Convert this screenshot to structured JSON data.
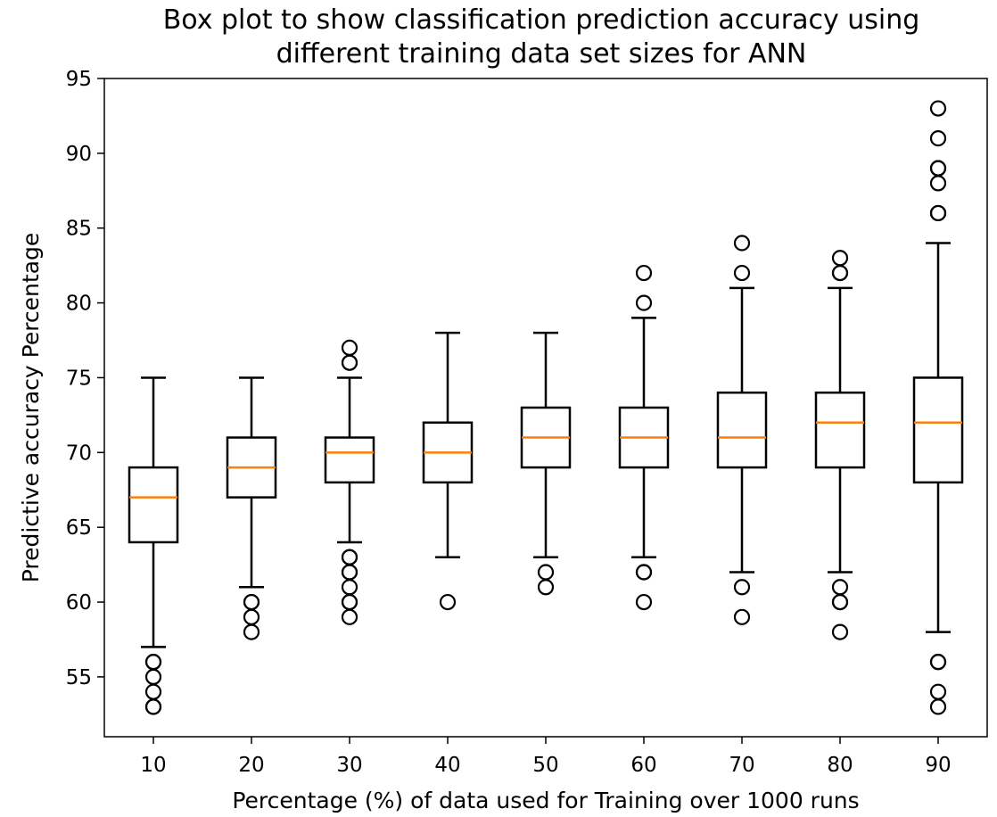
{
  "chart_data": {
    "type": "box",
    "title": "Box plot to show classification prediction accuracy using different training data set sizes for ANN",
    "title_lines": [
      "Box plot to show classification prediction accuracy using",
      "different training data set sizes for ANN"
    ],
    "xlabel": "Percentage (%) of data used for Training over 1000 runs",
    "ylabel": "Predictive accuracy Percentage",
    "ylim": [
      51,
      95
    ],
    "yticks": [
      55,
      60,
      65,
      70,
      75,
      80,
      85,
      90,
      95
    ],
    "categories": [
      "10",
      "20",
      "30",
      "40",
      "50",
      "60",
      "70",
      "80",
      "90"
    ],
    "boxes": [
      {
        "category": "10",
        "whisker_low": 57,
        "q1": 64,
        "median": 67,
        "q3": 69,
        "whisker_high": 75,
        "outliers": [
          56,
          56,
          55,
          54,
          53,
          53
        ]
      },
      {
        "category": "20",
        "whisker_low": 61,
        "q1": 67,
        "median": 69,
        "q3": 71,
        "whisker_high": 75,
        "outliers": [
          60,
          60,
          59,
          58
        ]
      },
      {
        "category": "30",
        "whisker_low": 64,
        "q1": 68,
        "median": 70,
        "q3": 71,
        "whisker_high": 75,
        "outliers": [
          77,
          76,
          76,
          63,
          63,
          62,
          62,
          61,
          60,
          60,
          59
        ]
      },
      {
        "category": "40",
        "whisker_low": 63,
        "q1": 68,
        "median": 70,
        "q3": 72,
        "whisker_high": 78,
        "outliers": [
          60
        ]
      },
      {
        "category": "50",
        "whisker_low": 63,
        "q1": 69,
        "median": 71,
        "q3": 73,
        "whisker_high": 78,
        "outliers": [
          62,
          61
        ]
      },
      {
        "category": "60",
        "whisker_low": 63,
        "q1": 69,
        "median": 71,
        "q3": 73,
        "whisker_high": 79,
        "outliers": [
          82,
          80,
          62,
          62,
          60
        ]
      },
      {
        "category": "70",
        "whisker_low": 62,
        "q1": 69,
        "median": 71,
        "q3": 74,
        "whisker_high": 81,
        "outliers": [
          84,
          82,
          61,
          59
        ]
      },
      {
        "category": "80",
        "whisker_low": 62,
        "q1": 69,
        "median": 72,
        "q3": 74,
        "whisker_high": 81,
        "outliers": [
          83,
          82,
          82,
          61,
          60,
          60,
          58
        ]
      },
      {
        "category": "90",
        "whisker_low": 58,
        "q1": 68,
        "median": 72,
        "q3": 75,
        "whisker_high": 84,
        "outliers": [
          93,
          91,
          89,
          89,
          88,
          86,
          86,
          56,
          56,
          54,
          53
        ]
      }
    ],
    "colors": {
      "box": "#000000",
      "median": "#ff7f0e",
      "outlier": "#000000"
    },
    "grid": false,
    "legend": "none"
  }
}
